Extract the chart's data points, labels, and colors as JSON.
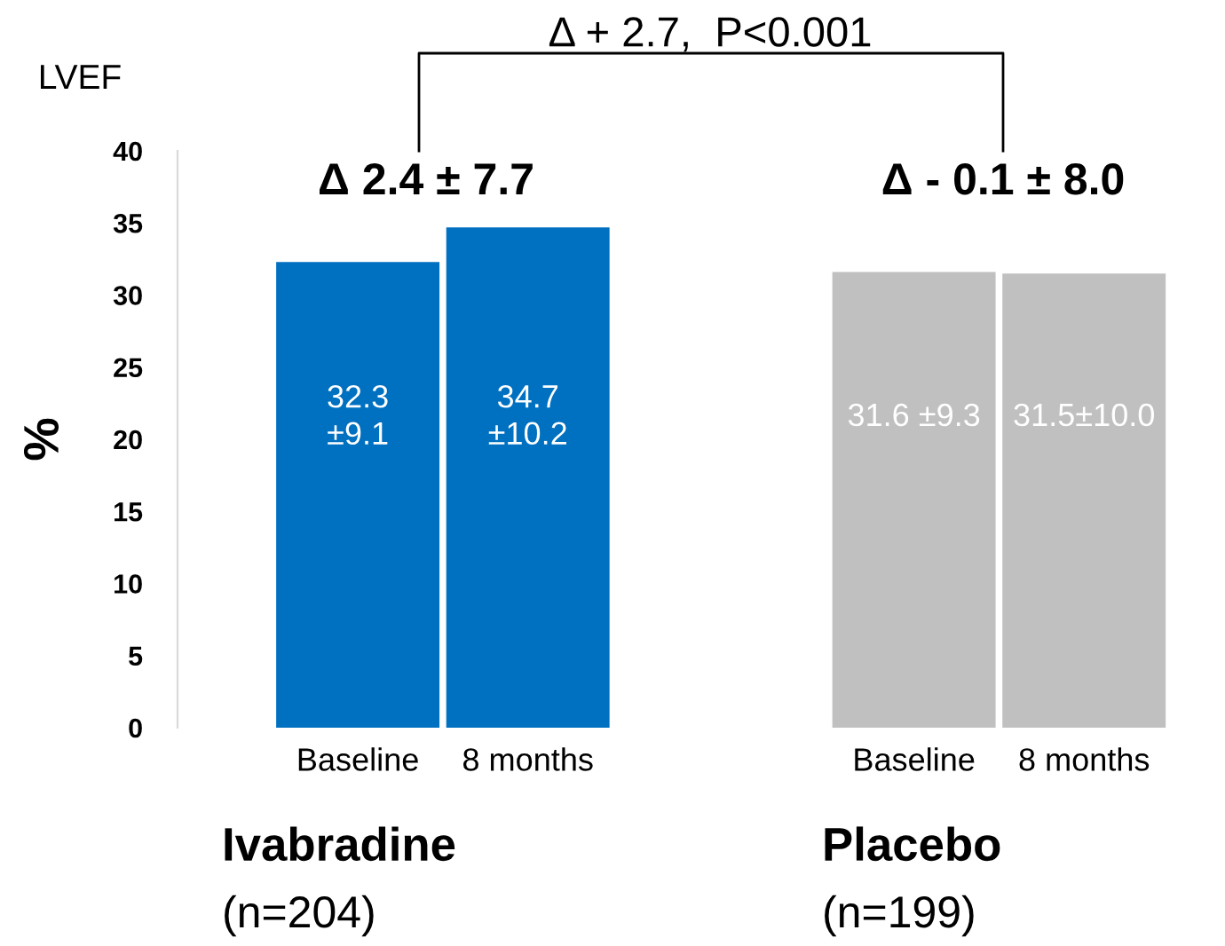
{
  "chart_data": {
    "type": "bar",
    "ylabel": "%",
    "categories": [
      "Baseline",
      "8 months",
      "Baseline",
      "8 months"
    ],
    "values": [
      32.3,
      34.7,
      31.6,
      31.5
    ],
    "colors": [
      "#0070c0",
      "#0070c0",
      "#c0c0c0",
      "#c0c0c0"
    ],
    "value_labels": [
      "32.3\n±9.1",
      "34.7\n±10.2",
      "31.6 ±9.3",
      "31.5±10.0"
    ],
    "ylim": [
      0,
      40
    ],
    "yticks": [
      0,
      5,
      10,
      15,
      20,
      25,
      30,
      35,
      40
    ],
    "grid": false,
    "legend": false,
    "annotations": [
      "LVEF",
      "Δ 2.4 ± 7.7",
      "Δ - 0.1 ± 8.0",
      "Δ + 2.7,  P<0.001",
      "Ivabradine",
      "(n=204)",
      "Placebo",
      "(n=199)"
    ]
  }
}
